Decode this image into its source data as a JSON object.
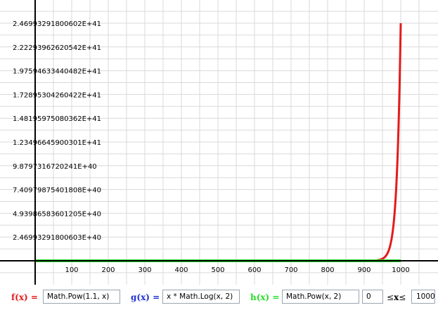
{
  "colors": {
    "f": "#e31b1b",
    "g": "#1f2fd6",
    "h": "#28dc28",
    "grid": "#d9d9d9",
    "axis": "#000000"
  },
  "controls": {
    "f_label": "f(x) =",
    "f_expr": "Math.Pow(1.1, x)",
    "g_label": "g(x) =",
    "g_expr": "x * Math.Log(x, 2)",
    "h_label": "h(x) =",
    "h_expr": "Math.Pow(x, 2)",
    "x_min": "0",
    "leq1": "≤",
    "x_var": "x",
    "leq2": "≤",
    "x_max": "1000"
  },
  "chart_data": {
    "type": "line",
    "title": "",
    "xlabel": "",
    "ylabel": "",
    "xlim": [
      0,
      1000
    ],
    "ylim": [
      0,
      2.46993291800602e+41
    ],
    "grid": true,
    "x_ticks": [
      100,
      200,
      300,
      400,
      500,
      600,
      700,
      800,
      900,
      1000
    ],
    "x_tick_labels": [
      "100",
      "200",
      "300",
      "400",
      "500",
      "600",
      "700",
      "800",
      "900",
      "1000"
    ],
    "y_ticks": [
      2.46993291800603e+40,
      4.93986583601205e+40,
      7.40979875401808e+40,
      9.8797316720241e+40,
      1.23496645900301e+41,
      1.48195975080362e+41,
      1.72895304260422e+41,
      1.97594633440482e+41,
      2.22293962620542e+41,
      2.46993291800602e+41
    ],
    "y_tick_labels": [
      "2.46993291800603E+40",
      "4.93986583601205E+40",
      "7.40979875401808E+40",
      "9.8797316720241E+40",
      "1.23496645900301E+41",
      "1.48195975080362E+41",
      "1.72895304260422E+41",
      "1.97594633440482E+41",
      "2.22293962620542E+41",
      "2.46993291800602E+41"
    ],
    "series": [
      {
        "key": "f",
        "expr": "Math.Pow(1.1, x)",
        "color": "#e31b1b"
      },
      {
        "key": "g",
        "expr": "x * Math.Log(x, 2)",
        "color": "#1f2fd6"
      },
      {
        "key": "h",
        "expr": "Math.Pow(x, 2)",
        "color": "#28dc28"
      }
    ]
  }
}
